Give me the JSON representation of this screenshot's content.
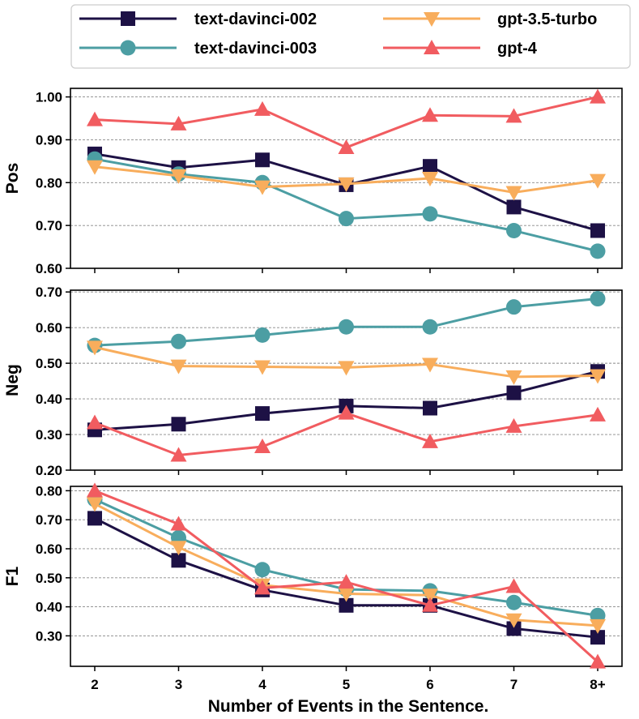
{
  "chart_data": {
    "type": "line",
    "categories": [
      "2",
      "3",
      "4",
      "5",
      "6",
      "7",
      "8+"
    ],
    "xlabel": "Number of Events in the Sentence.",
    "legend": {
      "placement": "top"
    },
    "series_styles": [
      {
        "name": "text-davinci-002",
        "color": "#1d1145",
        "marker": "square"
      },
      {
        "name": "text-davinci-003",
        "color": "#4c9ea3",
        "marker": "circle"
      },
      {
        "name": "gpt-3.5-turbo",
        "color": "#f8ad5c",
        "marker": "triangle-down"
      },
      {
        "name": "gpt-4",
        "color": "#f15c60",
        "marker": "triangle-up"
      }
    ],
    "panels": [
      {
        "ylabel": "Pos",
        "ylim": [
          0.6,
          1.02
        ],
        "yticks": [
          0.6,
          0.7,
          0.8,
          0.9,
          1.0
        ],
        "ytick_labels": [
          "0.60",
          "0.70",
          "0.80",
          "0.90",
          "1.00"
        ],
        "series": [
          {
            "name": "text-davinci-002",
            "values": [
              0.867,
              0.835,
              0.853,
              0.795,
              0.838,
              0.743,
              0.688
            ]
          },
          {
            "name": "text-davinci-003",
            "values": [
              0.855,
              0.82,
              0.8,
              0.716,
              0.727,
              0.688,
              0.64
            ]
          },
          {
            "name": "gpt-3.5-turbo",
            "values": [
              0.837,
              0.816,
              0.79,
              0.797,
              0.81,
              0.777,
              0.805
            ]
          },
          {
            "name": "gpt-4",
            "values": [
              0.947,
              0.937,
              0.971,
              0.882,
              0.957,
              0.955,
              1.0
            ]
          }
        ]
      },
      {
        "ylabel": "Neg",
        "ylim": [
          0.2,
          0.705
        ],
        "yticks": [
          0.2,
          0.3,
          0.4,
          0.5,
          0.6,
          0.7
        ],
        "ytick_labels": [
          "0.20",
          "0.30",
          "0.40",
          "0.50",
          "0.60",
          "0.70"
        ],
        "series": [
          {
            "name": "text-davinci-002",
            "values": [
              0.313,
              0.329,
              0.359,
              0.38,
              0.374,
              0.417,
              0.477
            ]
          },
          {
            "name": "text-davinci-003",
            "values": [
              0.55,
              0.561,
              0.579,
              0.602,
              0.602,
              0.658,
              0.681
            ]
          },
          {
            "name": "gpt-3.5-turbo",
            "values": [
              0.545,
              0.492,
              0.49,
              0.488,
              0.497,
              0.462,
              0.465
            ]
          },
          {
            "name": "gpt-4",
            "values": [
              0.333,
              0.242,
              0.266,
              0.36,
              0.28,
              0.323,
              0.355
            ]
          }
        ]
      },
      {
        "ylabel": "F1",
        "ylim": [
          0.195,
          0.815
        ],
        "yticks": [
          0.3,
          0.4,
          0.5,
          0.6,
          0.7,
          0.8
        ],
        "ytick_labels": [
          "0.30",
          "0.40",
          "0.50",
          "0.60",
          "0.70",
          "0.80"
        ],
        "series": [
          {
            "name": "text-davinci-002",
            "values": [
              0.705,
              0.56,
              0.458,
              0.405,
              0.405,
              0.325,
              0.295
            ]
          },
          {
            "name": "text-davinci-003",
            "values": [
              0.77,
              0.638,
              0.528,
              0.46,
              0.455,
              0.415,
              0.37
            ]
          },
          {
            "name": "gpt-3.5-turbo",
            "values": [
              0.755,
              0.605,
              0.475,
              0.445,
              0.44,
              0.355,
              0.335
            ]
          },
          {
            "name": "gpt-4",
            "values": [
              0.8,
              0.685,
              0.465,
              0.485,
              0.405,
              0.47,
              0.21
            ]
          }
        ]
      }
    ]
  }
}
